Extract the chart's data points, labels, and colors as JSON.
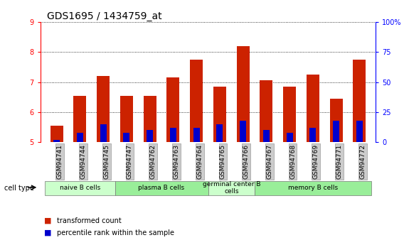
{
  "title": "GDS1695 / 1434759_at",
  "categories": [
    "GSM94741",
    "GSM94744",
    "GSM94745",
    "GSM94747",
    "GSM94762",
    "GSM94763",
    "GSM94764",
    "GSM94765",
    "GSM94766",
    "GSM94767",
    "GSM94768",
    "GSM94769",
    "GSM94771",
    "GSM94772"
  ],
  "red_values": [
    5.55,
    6.55,
    7.2,
    6.55,
    6.55,
    7.15,
    7.75,
    6.85,
    8.2,
    7.05,
    6.85,
    7.25,
    6.45,
    7.75
  ],
  "blue_percentile": [
    2,
    8,
    15,
    8,
    10,
    12,
    12,
    15,
    18,
    10,
    8,
    12,
    18,
    18
  ],
  "ylim_left": [
    5,
    9
  ],
  "ylim_right": [
    0,
    100
  ],
  "yticks_left": [
    5,
    6,
    7,
    8,
    9
  ],
  "yticks_right": [
    0,
    25,
    50,
    75,
    100
  ],
  "yticks_right_labels": [
    "0",
    "25",
    "50",
    "75",
    "100%"
  ],
  "bar_width": 0.55,
  "red_color": "#cc2200",
  "blue_color": "#0000cc",
  "cell_groups": [
    {
      "label": "naive B cells",
      "indices": [
        0,
        1,
        2
      ],
      "color": "#ccffcc"
    },
    {
      "label": "plasma B cells",
      "indices": [
        3,
        4,
        5,
        6
      ],
      "color": "#99ee99"
    },
    {
      "label": "germinal center B\ncells",
      "indices": [
        7,
        8
      ],
      "color": "#ccffcc"
    },
    {
      "label": "memory B cells",
      "indices": [
        9,
        10,
        11,
        12,
        13
      ],
      "color": "#99ee99"
    }
  ],
  "legend_items": [
    {
      "label": "transformed count",
      "color": "#cc2200"
    },
    {
      "label": "percentile rank within the sample",
      "color": "#0000cc"
    }
  ],
  "tick_label_bg": "#cccccc",
  "title_fontsize": 10,
  "tick_fontsize": 6.5
}
